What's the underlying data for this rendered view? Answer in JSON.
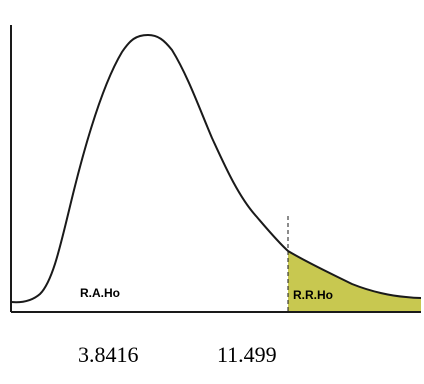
{
  "diagram": {
    "acceptance_region_label": "R.A.Ho",
    "rejection_region_label": "R.R.Ho",
    "critical_values": [
      "3.8416",
      "11.499"
    ],
    "colors": {
      "curve": "#1a1a1a",
      "axis": "#1a1a1a",
      "rejection_fill": "#c8c850",
      "background": "#ffffff"
    }
  }
}
